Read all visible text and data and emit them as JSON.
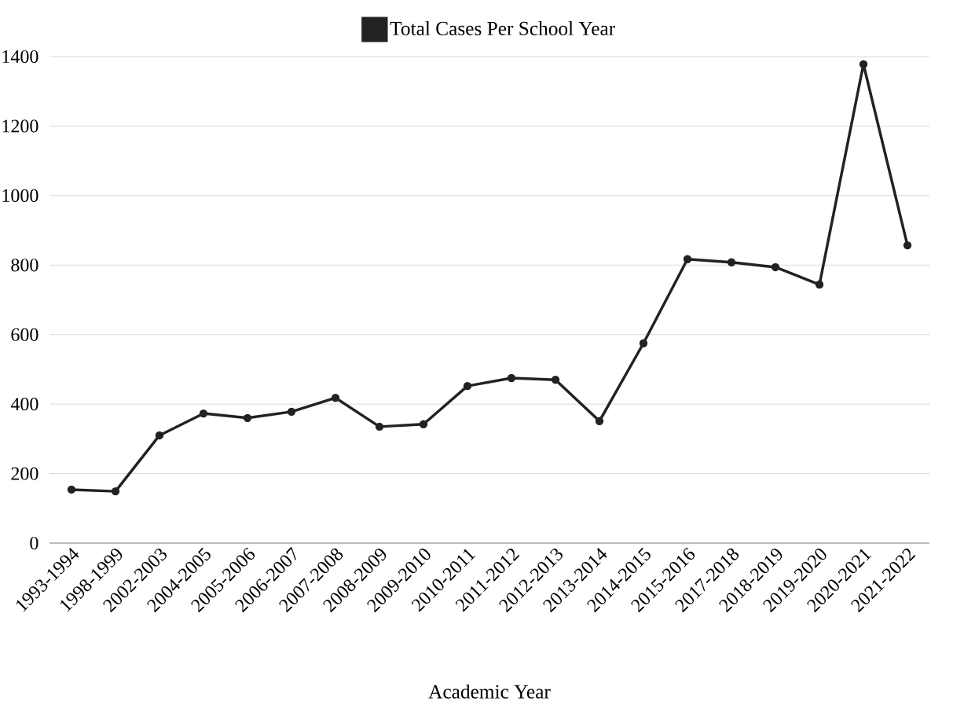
{
  "chart_data": {
    "type": "line",
    "xlabel": "Academic Year",
    "categories": [
      "1993-1994",
      "1998-1999",
      "2002-2003",
      "2004-2005",
      "2005-2006",
      "2006-2007",
      "2007-2008",
      "2008-2009",
      "2009-2010",
      "2010-2011",
      "2011-2012",
      "2012-2013",
      "2013-2014",
      "2014-2015",
      "2015-2016",
      "2017-2018",
      "2018-2019",
      "2019-2020",
      "2020-2021",
      "2021-2022"
    ],
    "series": [
      {
        "name": "Total Cases Per School Year",
        "color": "#222222",
        "values": [
          154,
          149,
          310,
          373,
          360,
          378,
          418,
          335,
          342,
          452,
          475,
          470,
          351,
          575,
          817,
          808,
          794,
          744,
          1378,
          857
        ]
      }
    ],
    "ylim": [
      0,
      1400
    ],
    "yticks": [
      0,
      200,
      400,
      600,
      800,
      1000,
      1200,
      1400
    ],
    "grid": "y",
    "legend": "top",
    "marker": "circle",
    "line_style": "solid"
  }
}
